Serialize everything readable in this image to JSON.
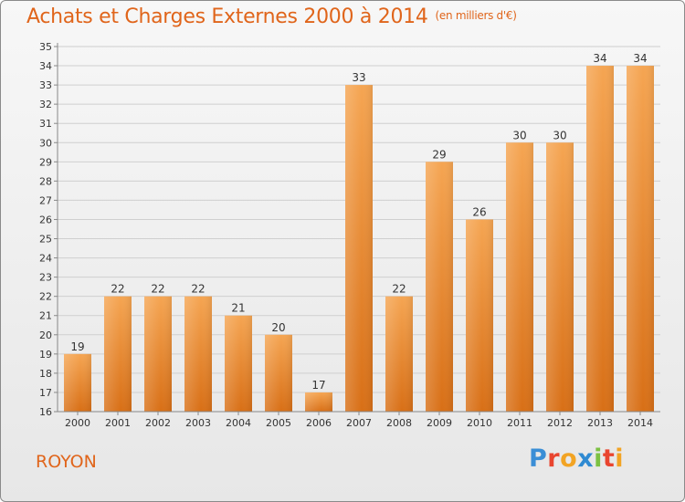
{
  "header": {
    "title": "Achats et Charges Externes 2000 à 2014",
    "unit": "(en milliers d'€)"
  },
  "footer": {
    "commune": "ROYON",
    "logo_letters": [
      "P",
      "r",
      "o",
      "x",
      "i",
      "t",
      "i"
    ]
  },
  "colors": {
    "bar_top": "#f5a552",
    "bar_bottom": "#d86f16",
    "title": "#e0651b"
  },
  "chart_data": {
    "type": "bar",
    "title": "Achats et Charges Externes 2000 à 2014",
    "xlabel": "",
    "ylabel": "",
    "categories": [
      "2000",
      "2001",
      "2002",
      "2003",
      "2004",
      "2005",
      "2006",
      "2007",
      "2008",
      "2009",
      "2010",
      "2011",
      "2012",
      "2013",
      "2014"
    ],
    "values": [
      19,
      22,
      22,
      22,
      21,
      20,
      17,
      33,
      22,
      29,
      26,
      30,
      30,
      34,
      34
    ],
    "ylim": [
      16,
      35
    ],
    "yticks": [
      16,
      17,
      18,
      19,
      20,
      21,
      22,
      23,
      24,
      25,
      26,
      27,
      28,
      29,
      30,
      31,
      32,
      33,
      34,
      35
    ],
    "grid": true,
    "data_labels": true
  }
}
